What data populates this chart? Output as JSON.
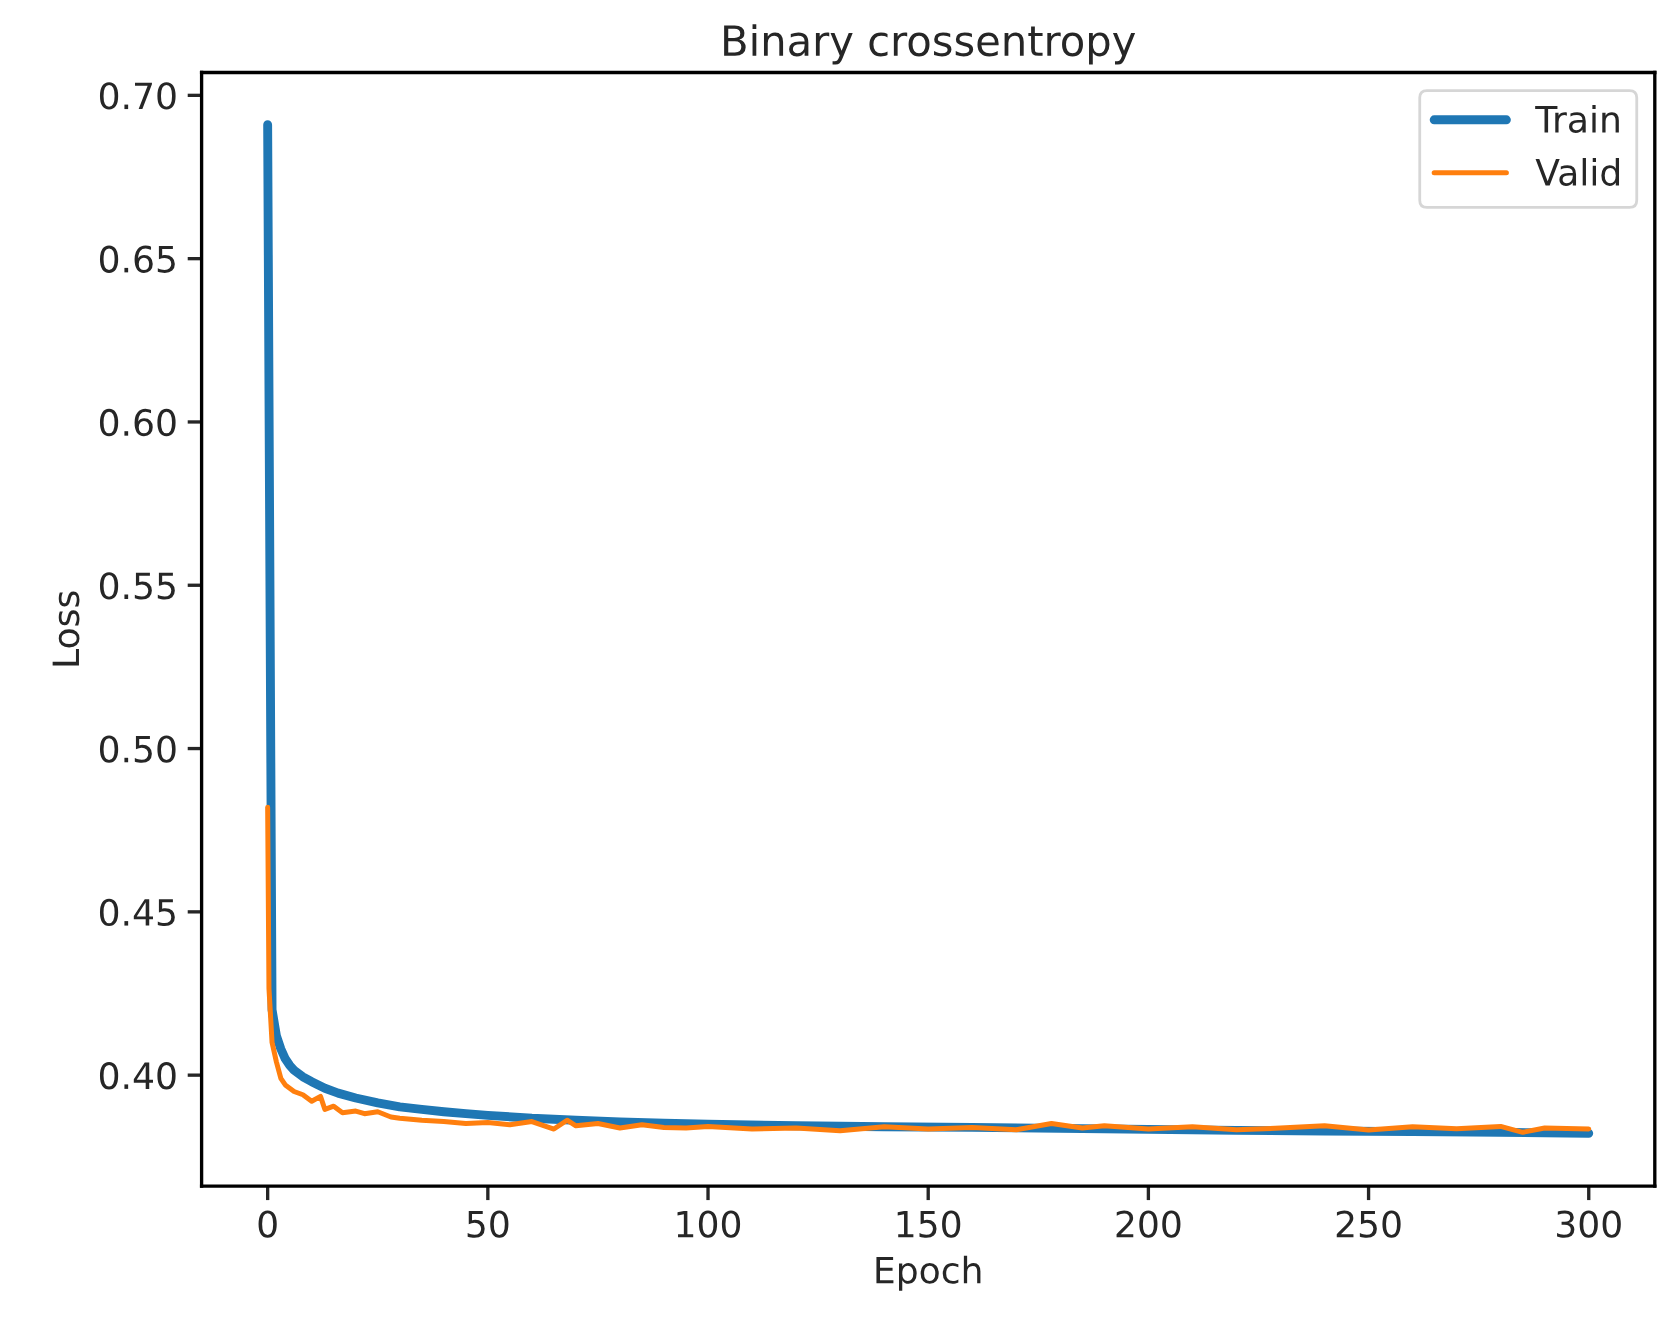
{
  "chart_data": {
    "type": "line",
    "title": "Binary crossentropy",
    "xlabel": "Epoch",
    "ylabel": "Loss",
    "xlim": [
      -15,
      315
    ],
    "ylim": [
      0.366,
      0.707
    ],
    "xticks": [
      0,
      50,
      100,
      150,
      200,
      250,
      300
    ],
    "yticks": [
      {
        "value": 0.4,
        "label": "0.40"
      },
      {
        "value": 0.45,
        "label": "0.45"
      },
      {
        "value": 0.5,
        "label": "0.50"
      },
      {
        "value": 0.55,
        "label": "0.55"
      },
      {
        "value": 0.6,
        "label": "0.60"
      },
      {
        "value": 0.65,
        "label": "0.65"
      },
      {
        "value": 0.7,
        "label": "0.70"
      }
    ],
    "grid": false,
    "legend": "top right",
    "series": [
      {
        "name": "Train",
        "color": "#1f77b4",
        "x": [
          0,
          1,
          2,
          3,
          4,
          5,
          6,
          8,
          10,
          13,
          16,
          20,
          25,
          30,
          35,
          40,
          45,
          50,
          60,
          70,
          80,
          90,
          100,
          120,
          140,
          160,
          180,
          200,
          220,
          240,
          260,
          280,
          300
        ],
        "values": [
          0.691,
          0.42,
          0.412,
          0.408,
          0.405,
          0.403,
          0.4015,
          0.3995,
          0.398,
          0.396,
          0.3945,
          0.393,
          0.3915,
          0.3903,
          0.3895,
          0.3888,
          0.3882,
          0.3877,
          0.3868,
          0.3862,
          0.3857,
          0.3853,
          0.385,
          0.3845,
          0.3842,
          0.384,
          0.3837,
          0.3834,
          0.3831,
          0.3829,
          0.3827,
          0.3825,
          0.3822
        ]
      },
      {
        "name": "Valid",
        "color": "#ff7f0e",
        "x": [
          0,
          0.3,
          1,
          2,
          3,
          4,
          6,
          8,
          10,
          12,
          13,
          15,
          17,
          20,
          22,
          25,
          28,
          30,
          35,
          40,
          45,
          50,
          55,
          60,
          65,
          68,
          70,
          75,
          80,
          85,
          90,
          95,
          100,
          110,
          120,
          130,
          140,
          150,
          160,
          170,
          178,
          185,
          190,
          200,
          210,
          220,
          230,
          240,
          250,
          260,
          270,
          280,
          285,
          290,
          300
        ],
        "values": [
          0.482,
          0.4265,
          0.41,
          0.404,
          0.399,
          0.397,
          0.395,
          0.394,
          0.392,
          0.3935,
          0.3895,
          0.3905,
          0.3885,
          0.389,
          0.3882,
          0.3888,
          0.3872,
          0.3868,
          0.3862,
          0.3858,
          0.3852,
          0.3855,
          0.3848,
          0.3858,
          0.3835,
          0.3862,
          0.3845,
          0.3852,
          0.3838,
          0.3848,
          0.384,
          0.3838,
          0.3843,
          0.3835,
          0.3838,
          0.383,
          0.3842,
          0.3835,
          0.384,
          0.3833,
          0.3852,
          0.3838,
          0.3845,
          0.3835,
          0.3842,
          0.3833,
          0.3838,
          0.3845,
          0.3832,
          0.3842,
          0.3836,
          0.3843,
          0.3825,
          0.3838,
          0.3835
        ]
      }
    ]
  }
}
